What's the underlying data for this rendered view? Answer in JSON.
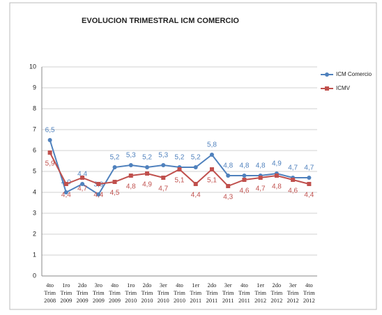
{
  "chart_data": {
    "type": "line",
    "title": "EVOLUCION TRIMESTRAL ICM COMERCIO",
    "categories": [
      "4to Trim 2008",
      "1ro Trim 2009",
      "2do Trim 2009",
      "3ro Trim 2009",
      "4to Trim 2009",
      "1ro Trim 2010",
      "2do Trim 2010",
      "3er Trim 2010",
      "4to Trim 2010",
      "1er Trim 2011",
      "2do Trim 2011",
      "3er Trim 2011",
      "4to Trim 2011",
      "1er Trim 2012",
      "2do Trim 2012",
      "3er Trim 2012",
      "4to Trim 2012"
    ],
    "series": [
      {
        "name": "ICM Comercio",
        "color": "#4f81bd",
        "values": [
          6.5,
          4.0,
          4.4,
          3.9,
          5.2,
          5.3,
          5.2,
          5.3,
          5.2,
          5.2,
          5.8,
          4.8,
          4.8,
          4.8,
          4.9,
          4.7,
          4.7
        ],
        "value_labels": [
          "6,5",
          "4,0",
          "4,4",
          "3,9",
          "5,2",
          "5,3",
          "5,2",
          "5,3",
          "5,2",
          "5,2",
          "5,8",
          "4,8",
          "4,8",
          "4,8",
          "4,9",
          "4,7",
          "4,7"
        ]
      },
      {
        "name": "ICMV",
        "color": "#c0504d",
        "values": [
          5.9,
          4.4,
          4.7,
          4.4,
          4.5,
          4.8,
          4.9,
          4.7,
          5.1,
          4.4,
          5.1,
          4.3,
          4.6,
          4.7,
          4.8,
          4.6,
          4.4
        ],
        "value_labels": [
          "5,9",
          "4,4",
          "4,7",
          "4,4",
          "4,5",
          "4,8",
          "4,9",
          "4,7",
          "5,1",
          "4,4",
          "5,1",
          "4,3",
          "4,6",
          "4,7",
          "4,8",
          "4,6",
          "4,4"
        ]
      }
    ],
    "ylim": [
      0,
      10
    ],
    "yticks": [
      0,
      1,
      2,
      3,
      4,
      5,
      6,
      7,
      8,
      9,
      10
    ],
    "grid": true,
    "legend": "right"
  }
}
